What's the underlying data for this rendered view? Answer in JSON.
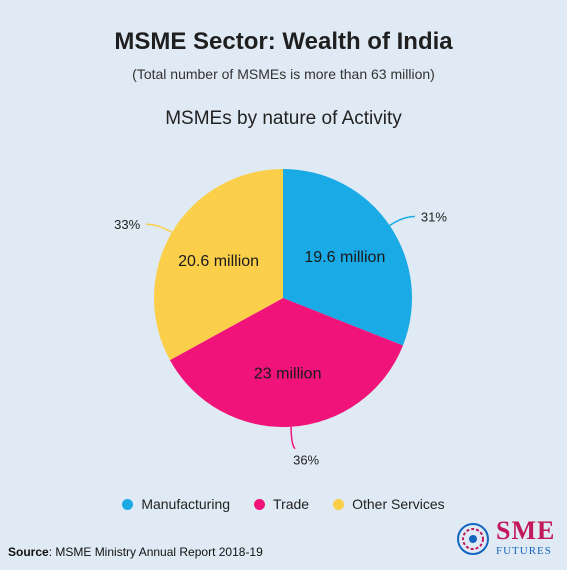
{
  "header": {
    "title": "MSME Sector: Wealth of India",
    "subtitle": "(Total number of MSMEs is more than 63 million)"
  },
  "chart_data": {
    "type": "pie",
    "title": "MSMEs by nature of Activity",
    "categories": [
      "Manufacturing",
      "Trade",
      "Other Services"
    ],
    "values": [
      31,
      36,
      33
    ],
    "percent_labels": [
      "31%",
      "36%",
      "33%"
    ],
    "value_labels": [
      "19.6 million",
      "23 million",
      "20.6 million"
    ],
    "colors": [
      "#1aaae5",
      "#f0147a",
      "#fbcf4a"
    ],
    "legend_position": "bottom"
  },
  "footer": {
    "source_label": "Source",
    "source_text": ": MSME Ministry Annual Report 2018-19"
  },
  "logo": {
    "line1": "SME",
    "line2": "FUTURES"
  }
}
